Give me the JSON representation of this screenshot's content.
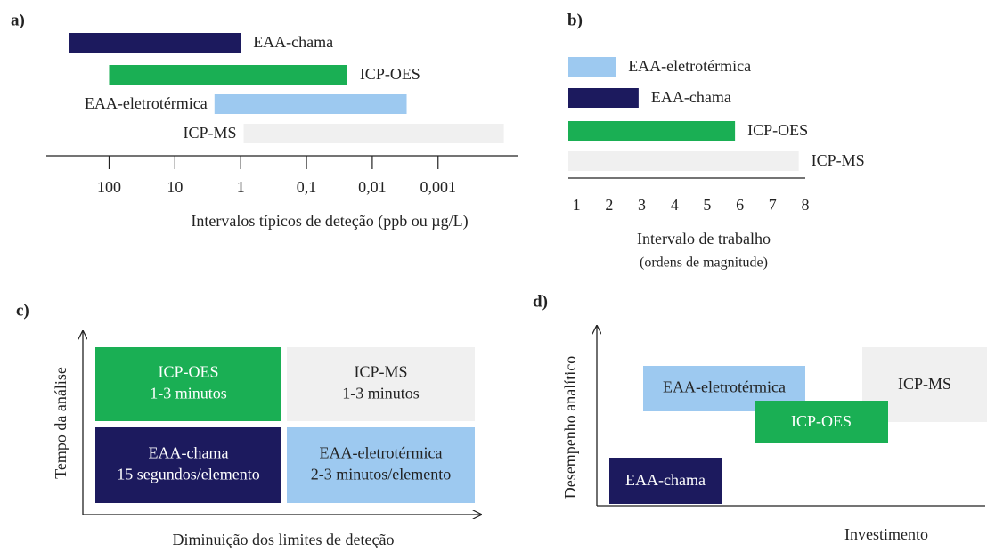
{
  "chart_data": [
    {
      "type": "range-bar",
      "label": "a)",
      "xlabel": "Intervalos típicos de deteção (ppb ou µg/L)",
      "categories": [
        "EAA-chama",
        "ICP-OES",
        "EAA-eletrotérmica",
        "ICP-MS"
      ],
      "ranges": [
        [
          400,
          1
        ],
        [
          100,
          0.024
        ],
        [
          2.5,
          0.003
        ],
        [
          0.9,
          0.0001
        ]
      ],
      "colors": [
        "#1c1a5e",
        "#1aaf54",
        "#9dc9f0",
        "#f0f0f0"
      ],
      "xscale": "log",
      "xlim": [
        900,
        6e-05
      ],
      "xticks": [
        100,
        10,
        1,
        {
          "value": 0.1,
          "label": "0,1"
        },
        {
          "value": 0.01,
          "label": "0,01"
        },
        {
          "value": 0.001,
          "label": "0,001"
        }
      ],
      "tick_marks": true
    },
    {
      "type": "bar",
      "label": "b)",
      "xlabel": "Intervalo de trabalho",
      "xlabel_note": "(ordens de magnitude)",
      "categories": [
        "EAA-eletrotérmica",
        "EAA-chama",
        "ICP-OES",
        "ICP-MS"
      ],
      "values": [
        2.2,
        2.9,
        5.85,
        7.8
      ],
      "colors": [
        "#9dc9f0",
        "#1c1a5e",
        "#1aaf54",
        "#f0f0f0"
      ],
      "xlim": [
        0.75,
        8
      ],
      "xticks": [
        1,
        2,
        3,
        4,
        5,
        6,
        7,
        8
      ],
      "tick_marks": false
    }
  ],
  "panel_c": {
    "label": "c)",
    "ylabel": "Tempo da análise",
    "xlabel": "Diminuição dos limites de deteção",
    "boxes": [
      {
        "lines": [
          "ICP-OES",
          "1-3 minutos"
        ],
        "color": "#1aaf54",
        "text_color": "#ffffff"
      },
      {
        "lines": [
          "ICP-MS",
          "1-3 minutos"
        ],
        "color": "#f0f0f0",
        "text_color": "#222222"
      },
      {
        "lines": [
          "EAA-chama",
          "15 segundos/elemento"
        ],
        "color": "#1c1a5e",
        "text_color": "#ffffff"
      },
      {
        "lines": [
          "EAA-eletrotérmica",
          "2-3 minutos/elemento"
        ],
        "color": "#9dc9f0",
        "text_color": "#222222"
      }
    ]
  },
  "panel_d": {
    "label": "d)",
    "ylabel": "Desempenho analítico",
    "xlabel": "Investimento",
    "boxes": [
      {
        "text": "EAA-eletrotérmica",
        "color": "#9dc9f0",
        "text_color": "#222222"
      },
      {
        "text": "ICP-MS",
        "color": "#f0f0f0",
        "text_color": "#222222"
      },
      {
        "text": "ICP-OES",
        "color": "#1aaf54",
        "text_color": "#ffffff"
      },
      {
        "text": "EAA-chama",
        "color": "#1c1a5e",
        "text_color": "#ffffff"
      }
    ]
  }
}
